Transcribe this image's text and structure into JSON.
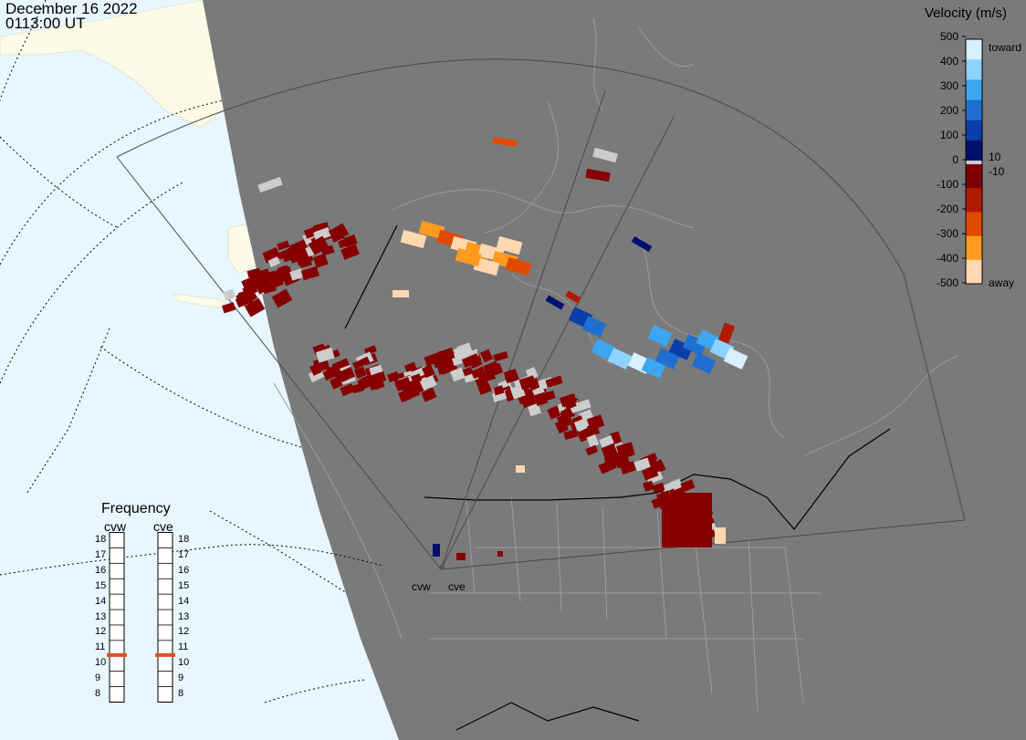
{
  "header": {
    "date": "December 16 2022",
    "time": "0113:00 UT"
  },
  "colorbar": {
    "title": "Velocity (m/s)",
    "ticks": [
      "500",
      "400",
      "300",
      "200",
      "100",
      "0",
      "-100",
      "-200",
      "-300",
      "-400",
      "-500"
    ],
    "toward_label": "toward",
    "away_label": "away",
    "pos_threshold": "10",
    "neg_threshold": "-10",
    "colors": [
      "#d8f0ff",
      "#8fd3ff",
      "#3da6f0",
      "#1f6fd0",
      "#0b3ea8",
      "#001070",
      "#7d0000",
      "#b01a00",
      "#e04a00",
      "#ff9a20",
      "#ffd8b0"
    ]
  },
  "frequency": {
    "title": "Frequency",
    "radars": [
      {
        "name": "cvw",
        "freq_mhz": 11
      },
      {
        "name": "cve",
        "freq_mhz": 11
      }
    ],
    "scale": [
      "18",
      "17",
      "16",
      "15",
      "14",
      "13",
      "12",
      "11",
      "10",
      "9",
      "8"
    ],
    "marker_color": "#e05020"
  },
  "map": {
    "night_color": "#7a7a7a",
    "ocean_color": "#e8f6ff",
    "land_color": "#fbfbe6",
    "radar_site_labels": [
      "cvw",
      "cve"
    ]
  }
}
